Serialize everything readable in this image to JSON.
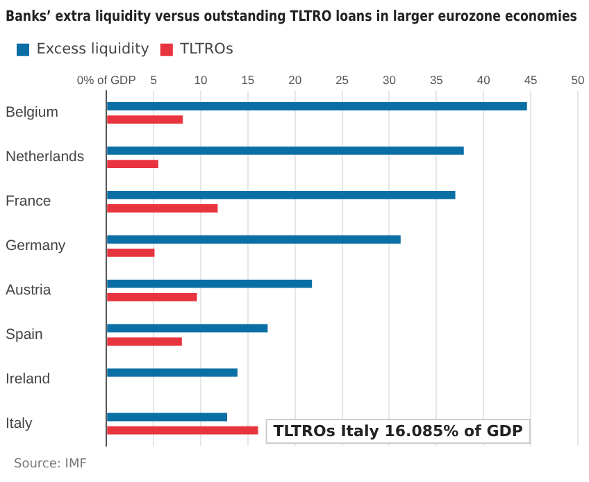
{
  "chart_data": {
    "type": "bar",
    "orientation": "horizontal",
    "title": "Banks’ extra liquidity versus outstanding TLTRO loans in larger eurozone economies",
    "categories": [
      "Belgium",
      "Netherlands",
      "France",
      "Germany",
      "Austria",
      "Spain",
      "Ireland",
      "Italy"
    ],
    "series": [
      {
        "name": "Excess liquidity",
        "color": "#0a6fa4",
        "values": [
          44.6,
          37.9,
          37.0,
          31.2,
          21.8,
          17.1,
          13.9,
          12.8
        ]
      },
      {
        "name": "TLTROs",
        "color": "#e8343f",
        "values": [
          8.1,
          5.5,
          11.8,
          5.1,
          9.6,
          8.0,
          null,
          16.085
        ]
      }
    ],
    "xlim": [
      0,
      50
    ],
    "xticks": [
      {
        "value": 0,
        "label": "0% of GDP"
      },
      5,
      10,
      15,
      20,
      25,
      30,
      35,
      40,
      45,
      50
    ],
    "grid": "x",
    "legend": "top left",
    "annotations": [
      {
        "text": "TLTROs Italy 16.085% of GDP",
        "x": 16.085,
        "y": "Italy"
      },
      "Source: IMF"
    ]
  }
}
